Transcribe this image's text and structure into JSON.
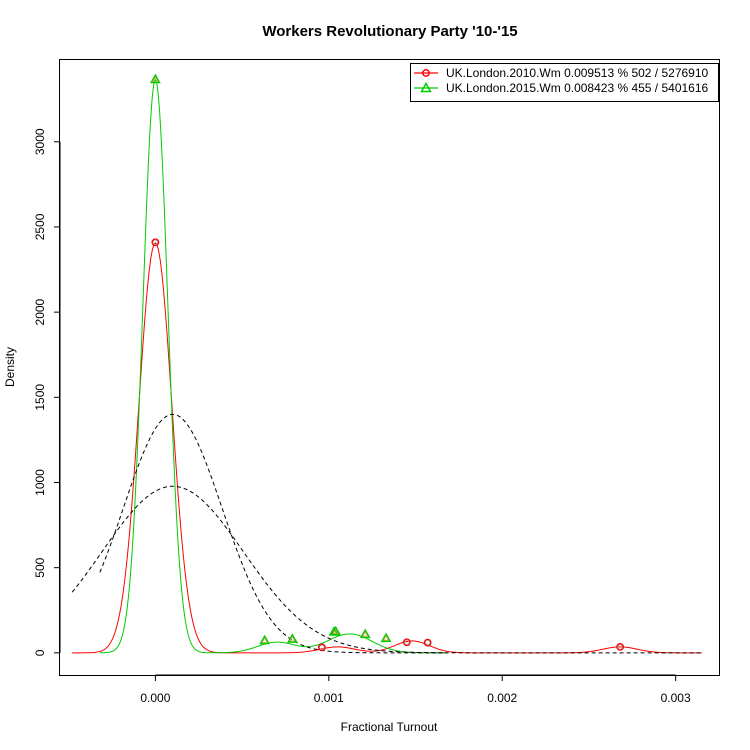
{
  "chart_data": {
    "type": "line",
    "title": "Workers Revolutionary Party '10-'15",
    "xlabel": "Fractional Turnout",
    "ylabel": "Density",
    "xlim": [
      -0.00055,
      0.00325
    ],
    "ylim": [
      -130,
      3480
    ],
    "x_ticks": [
      0.0,
      0.001,
      0.002,
      0.003
    ],
    "x_tick_labels": [
      "0.000",
      "0.001",
      "0.002",
      "0.003"
    ],
    "y_ticks": [
      0,
      500,
      1000,
      1500,
      2000,
      2500,
      3000
    ],
    "y_tick_labels": [
      "0",
      "500",
      "1000",
      "1500",
      "2000",
      "2500",
      "3000"
    ],
    "grid": false,
    "legend_position": "top-right",
    "series": [
      {
        "name": "UK.London.2010.Wm 0.009513 % 502 / 5276910",
        "color": "#ff0000",
        "marker": "circle",
        "components": [
          {
            "mean": 0.0,
            "sd": 9.5e-05,
            "weight": 0.5731
          },
          {
            "mean": 0.00105,
            "sd": 0.0001,
            "weight": 0.00879
          },
          {
            "mean": 0.00148,
            "sd": 0.0001,
            "weight": 0.01759
          },
          {
            "mean": 0.00268,
            "sd": 0.0001,
            "weight": 0.00879
          }
        ],
        "x_range": [
          -0.00048,
          0.00315
        ],
        "points": [
          {
            "x": 0.0,
            "y": 2410
          },
          {
            "x": 0.00096,
            "y": 32
          },
          {
            "x": 0.00145,
            "y": 62
          },
          {
            "x": 0.00157,
            "y": 60
          },
          {
            "x": 0.00268,
            "y": 35
          }
        ],
        "normal_fit": {
          "mean": 0.0001,
          "sd": 0.000408,
          "weight": 1.0,
          "x_range": [
            -0.00048,
            0.00315
          ]
        }
      },
      {
        "name": "UK.London.2015.Wm 0.008423 % 455 / 5401616",
        "color": "#00cc00",
        "marker": "triangle",
        "components": [
          {
            "mean": 0.0,
            "sd": 7.2e-05,
            "weight": 0.6072
          },
          {
            "mean": 0.0007,
            "sd": 0.00011,
            "weight": 0.01723
          },
          {
            "mean": 0.00112,
            "sd": 0.00013,
            "weight": 0.03617
          }
        ],
        "x_range": [
          -0.00032,
          0.00168
        ],
        "points": [
          {
            "x": 0.0,
            "y": 3365
          },
          {
            "x": 0.00063,
            "y": 72
          },
          {
            "x": 0.00079,
            "y": 80
          },
          {
            "x": 0.00103,
            "y": 122
          },
          {
            "x": 0.00104,
            "y": 124
          },
          {
            "x": 0.00121,
            "y": 108
          },
          {
            "x": 0.00133,
            "y": 85
          }
        ],
        "normal_fit": {
          "mean": 0.0001,
          "sd": 0.000285,
          "weight": 1.0,
          "x_range": [
            -0.00032,
            0.00168
          ]
        }
      }
    ]
  }
}
